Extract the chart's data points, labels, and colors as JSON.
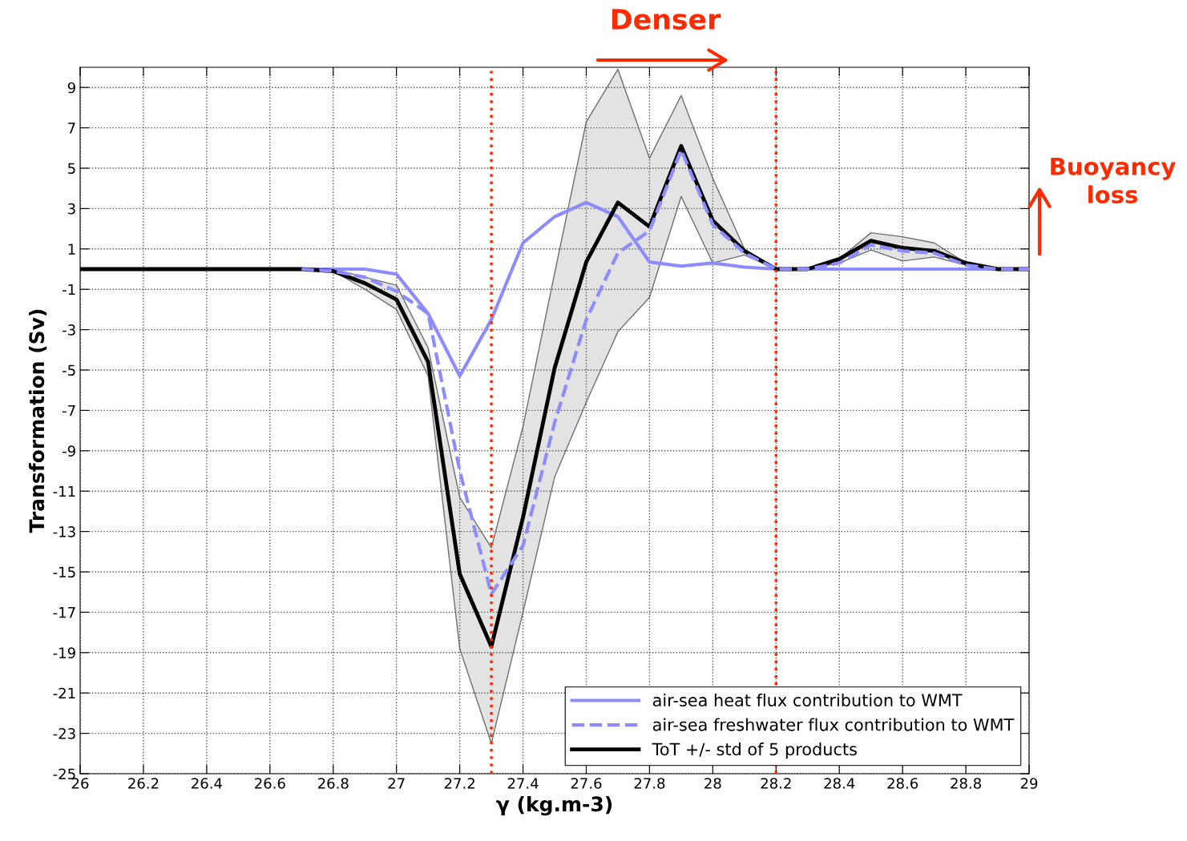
{
  "chart_data": {
    "type": "line",
    "xlabel": "γ (kg.m-3)",
    "ylabel": "Transformation (Sv)",
    "x": [
      26.0,
      26.1,
      26.2,
      26.3,
      26.4,
      26.5,
      26.6,
      26.7,
      26.8,
      26.9,
      27.0,
      27.1,
      27.2,
      27.3,
      27.4,
      27.5,
      27.6,
      27.7,
      27.8,
      27.9,
      28.0,
      28.1,
      28.2,
      28.3,
      28.4,
      28.5,
      28.6,
      28.7,
      28.8,
      28.9,
      29.0
    ],
    "series": [
      {
        "name": "air-sea heat flux contribution to WMT",
        "color": "#8c8cff",
        "line_style": "solid",
        "values": [
          null,
          null,
          null,
          null,
          null,
          null,
          0,
          0,
          0,
          0,
          -0.25,
          -2.2,
          -5.3,
          -2.5,
          1.3,
          2.6,
          3.3,
          2.6,
          0.35,
          0.15,
          0.3,
          0.1,
          0,
          0,
          0,
          0,
          0,
          0,
          0,
          0,
          0
        ]
      },
      {
        "name": "air-sea freshwater flux contribution to WMT",
        "color": "#8c8cff",
        "line_style": "dashed",
        "values": [
          null,
          null,
          null,
          null,
          null,
          null,
          null,
          0,
          -0.1,
          -0.4,
          -1.1,
          -2.2,
          -10.0,
          -16.1,
          -13.7,
          -7.6,
          -2.5,
          0.8,
          1.9,
          5.9,
          2.2,
          0.8,
          0,
          0,
          0.3,
          1.2,
          0.9,
          0.8,
          0.2,
          0,
          0
        ]
      },
      {
        "name": "ToT +/- std of 5 products",
        "color": "#000000",
        "line_style": "solid",
        "values": [
          0,
          0,
          0,
          0,
          0,
          0,
          0,
          0,
          -0.1,
          -0.7,
          -1.5,
          -4.6,
          -15.1,
          -18.7,
          -12.3,
          -4.9,
          0.35,
          3.3,
          2.1,
          6.1,
          2.4,
          0.9,
          0,
          0,
          0.5,
          1.4,
          1.05,
          0.9,
          0.3,
          0,
          0
        ],
        "lower": [
          0,
          0,
          0,
          0,
          0,
          0,
          0,
          0,
          -0.1,
          -1.0,
          -2.0,
          -5.3,
          -18.8,
          -23.5,
          -17.0,
          -10.3,
          -6.6,
          -3.1,
          -1.4,
          3.6,
          0.3,
          0.7,
          0,
          0,
          0.3,
          0.95,
          0.4,
          0.6,
          0.2,
          0,
          0
        ],
        "upper": [
          0,
          0,
          0,
          0,
          0,
          0,
          0,
          0,
          0,
          -0.4,
          -0.8,
          -3.9,
          -11.3,
          -13.8,
          -7.8,
          -0.2,
          7.3,
          9.9,
          5.5,
          8.6,
          4.5,
          1.0,
          0,
          0,
          0.5,
          1.8,
          1.6,
          1.3,
          0.3,
          0,
          0
        ]
      }
    ],
    "xlim": [
      26,
      29
    ],
    "ylim": [
      -25,
      10
    ],
    "xticks": [
      26,
      26.2,
      26.4,
      26.6,
      26.8,
      27,
      27.2,
      27.4,
      27.6,
      27.8,
      28,
      28.2,
      28.4,
      28.6,
      28.8,
      29
    ],
    "yticks": [
      -25,
      -23,
      -21,
      -19,
      -17,
      -15,
      -13,
      -11,
      -9,
      -7,
      -5,
      -3,
      -1,
      1,
      3,
      5,
      7,
      9
    ],
    "ref_lines": [
      {
        "axis": "x",
        "value": 27.3,
        "color": "#ff2a00",
        "line_style": "dotted"
      },
      {
        "axis": "x",
        "value": 28.2,
        "color": "#ff2a00",
        "line_style": "dotted"
      }
    ],
    "annotations": [
      "Denser",
      "Buoyancy loss"
    ],
    "grid": true,
    "legend": "bottom right",
    "marker": "none"
  }
}
